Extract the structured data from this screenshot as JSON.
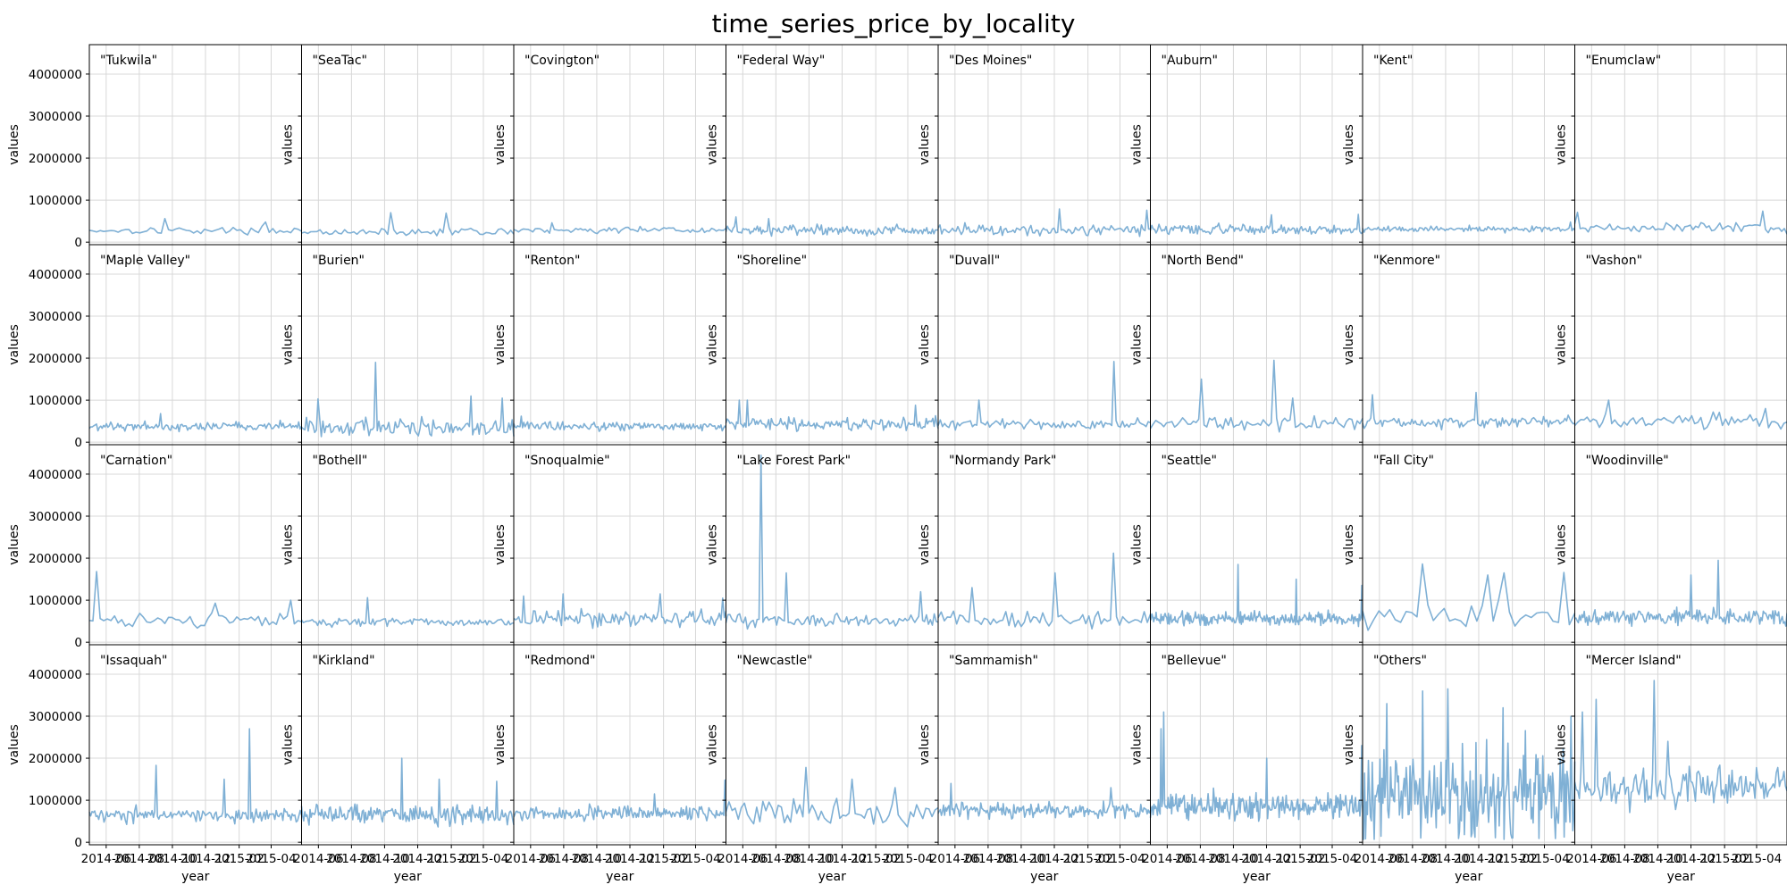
{
  "chart_data": {
    "type": "line",
    "title": "time_series_price_by_locality",
    "xlabel": "year",
    "ylabel": "values",
    "ylim": [
      -60000,
      4700000
    ],
    "yticks": [
      0,
      1000000,
      2000000,
      3000000,
      4000000
    ],
    "ytick_labels": [
      "0",
      "1000000",
      "2000000",
      "3000000",
      "4000000"
    ],
    "xlim": [
      "2014-05-01",
      "2015-05-27"
    ],
    "xticks": [
      "2014-06",
      "2014-08",
      "2014-10",
      "2014-12",
      "2015-02",
      "2015-04"
    ],
    "grid": true,
    "line_color": "#7fb0d5",
    "nrows": 4,
    "ncols": 8,
    "panels": [
      {
        "name": "\"Tukwila\"",
        "base": 280000,
        "noise": 60000,
        "n": 60,
        "spikes": [
          {
            "x": "2014-09-20",
            "y": 560000
          },
          {
            "x": "2015-03-20",
            "y": 480000
          }
        ]
      },
      {
        "name": "\"SeaTac\"",
        "base": 250000,
        "noise": 60000,
        "n": 70,
        "spikes": [
          {
            "x": "2014-10-15",
            "y": 700000
          },
          {
            "x": "2015-01-20",
            "y": 690000
          }
        ]
      },
      {
        "name": "\"Covington\"",
        "base": 290000,
        "noise": 55000,
        "n": 90,
        "spikes": [
          {
            "x": "2014-07-10",
            "y": 460000
          }
        ]
      },
      {
        "name": "\"Federal Way\"",
        "base": 280000,
        "noise": 90000,
        "n": 150,
        "spikes": [
          {
            "x": "2014-05-20",
            "y": 600000
          },
          {
            "x": "2014-07-20",
            "y": 560000
          }
        ]
      },
      {
        "name": "\"Des Moines\"",
        "base": 300000,
        "noise": 100000,
        "n": 120,
        "spikes": [
          {
            "x": "2014-12-10",
            "y": 790000
          },
          {
            "x": "2015-05-20",
            "y": 760000
          }
        ]
      },
      {
        "name": "\"Auburn\"",
        "base": 300000,
        "noise": 90000,
        "n": 150,
        "spikes": [
          {
            "x": "2014-12-10",
            "y": 650000
          },
          {
            "x": "2015-05-20",
            "y": 660000
          }
        ]
      },
      {
        "name": "\"Kent\"",
        "base": 310000,
        "noise": 50000,
        "n": 150,
        "spikes": [
          {
            "x": "2015-05-20",
            "y": 480000
          }
        ]
      },
      {
        "name": "\"Enumclaw\"",
        "base": 330000,
        "noise": 90000,
        "n": 80,
        "spikes": [
          {
            "x": "2014-05-05",
            "y": 710000
          },
          {
            "x": "2015-04-10",
            "y": 740000
          }
        ]
      },
      {
        "name": "\"Maple Valley\"",
        "base": 380000,
        "noise": 80000,
        "n": 150,
        "spikes": [
          {
            "x": "2014-09-10",
            "y": 680000
          }
        ]
      },
      {
        "name": "\"Burien\"",
        "base": 350000,
        "noise": 170000,
        "n": 130,
        "spikes": [
          {
            "x": "2014-09-15",
            "y": 1900000
          },
          {
            "x": "2015-03-10",
            "y": 1100000
          },
          {
            "x": "2015-05-05",
            "y": 1050000
          },
          {
            "x": "2014-06-01",
            "y": 1030000
          }
        ]
      },
      {
        "name": "\"Renton\"",
        "base": 380000,
        "noise": 80000,
        "n": 170,
        "spikes": [
          {
            "x": "2014-05-15",
            "y": 620000
          }
        ]
      },
      {
        "name": "\"Shoreline\"",
        "base": 430000,
        "noise": 110000,
        "n": 160,
        "spikes": [
          {
            "x": "2014-05-25",
            "y": 1000000
          },
          {
            "x": "2014-06-10",
            "y": 1000000
          },
          {
            "x": "2015-04-15",
            "y": 880000
          }
        ]
      },
      {
        "name": "\"Duvall\"",
        "base": 430000,
        "noise": 90000,
        "n": 100,
        "spikes": [
          {
            "x": "2015-03-20",
            "y": 1920000
          },
          {
            "x": "2014-07-15",
            "y": 1000000
          }
        ]
      },
      {
        "name": "\"North Bend\"",
        "base": 450000,
        "noise": 130000,
        "n": 80,
        "spikes": [
          {
            "x": "2014-08-01",
            "y": 1500000
          },
          {
            "x": "2014-12-15",
            "y": 1950000
          },
          {
            "x": "2015-01-20",
            "y": 1050000
          }
        ]
      },
      {
        "name": "\"Kenmore\"",
        "base": 480000,
        "noise": 100000,
        "n": 130,
        "spikes": [
          {
            "x": "2014-05-20",
            "y": 1130000
          },
          {
            "x": "2014-11-25",
            "y": 1180000
          }
        ]
      },
      {
        "name": "\"Vashon\"",
        "base": 500000,
        "noise": 130000,
        "n": 70,
        "spikes": [
          {
            "x": "2014-07-01",
            "y": 1000000
          },
          {
            "x": "2015-04-20",
            "y": 800000
          }
        ]
      },
      {
        "name": "\"Carnation\"",
        "base": 530000,
        "noise": 130000,
        "n": 60,
        "spikes": [
          {
            "x": "2014-05-15",
            "y": 1680000
          },
          {
            "x": "2015-05-10",
            "y": 1000000
          },
          {
            "x": "2014-12-20",
            "y": 930000
          }
        ]
      },
      {
        "name": "\"Bothell\"",
        "base": 480000,
        "noise": 80000,
        "n": 120,
        "spikes": [
          {
            "x": "2014-09-01",
            "y": 1060000
          }
        ]
      },
      {
        "name": "\"Snoqualmie\"",
        "base": 560000,
        "noise": 150000,
        "n": 130,
        "spikes": [
          {
            "x": "2014-05-20",
            "y": 1100000
          },
          {
            "x": "2014-08-01",
            "y": 1150000
          },
          {
            "x": "2015-01-25",
            "y": 1150000
          },
          {
            "x": "2015-05-20",
            "y": 1050000
          }
        ]
      },
      {
        "name": "\"Lake Forest Park\"",
        "base": 520000,
        "noise": 120000,
        "n": 110,
        "spikes": [
          {
            "x": "2014-07-05",
            "y": 4450000
          },
          {
            "x": "2014-08-20",
            "y": 1650000
          },
          {
            "x": "2015-04-25",
            "y": 1200000
          }
        ]
      },
      {
        "name": "\"Normandy Park\"",
        "base": 550000,
        "noise": 150000,
        "n": 70,
        "spikes": [
          {
            "x": "2014-07-05",
            "y": 1300000
          },
          {
            "x": "2014-12-01",
            "y": 1650000
          },
          {
            "x": "2015-03-20",
            "y": 2120000
          }
        ]
      },
      {
        "name": "\"Seattle\"",
        "base": 560000,
        "noise": 120000,
        "n": 260,
        "spikes": [
          {
            "x": "2014-10-10",
            "y": 1850000
          },
          {
            "x": "2015-01-25",
            "y": 1500000
          },
          {
            "x": "2015-05-25",
            "y": 1350000
          }
        ]
      },
      {
        "name": "\"Fall City\"",
        "base": 650000,
        "noise": 250000,
        "n": 40,
        "spikes": [
          {
            "x": "2014-08-20",
            "y": 1860000
          },
          {
            "x": "2014-12-15",
            "y": 1600000
          },
          {
            "x": "2015-01-20",
            "y": 1650000
          },
          {
            "x": "2015-05-05",
            "y": 1660000
          }
        ]
      },
      {
        "name": "\"Woodinville\"",
        "base": 600000,
        "noise": 150000,
        "n": 180,
        "spikes": [
          {
            "x": "2014-12-01",
            "y": 1600000
          },
          {
            "x": "2015-01-20",
            "y": 1950000
          }
        ]
      },
      {
        "name": "\"Issaquah\"",
        "base": 650000,
        "noise": 140000,
        "n": 160,
        "spikes": [
          {
            "x": "2014-09-01",
            "y": 1830000
          },
          {
            "x": "2015-01-05",
            "y": 1500000
          },
          {
            "x": "2015-02-20",
            "y": 2700000
          }
        ]
      },
      {
        "name": "\"Kirkland\"",
        "base": 650000,
        "noise": 170000,
        "n": 200,
        "spikes": [
          {
            "x": "2014-11-01",
            "y": 2000000
          },
          {
            "x": "2015-01-10",
            "y": 1500000
          },
          {
            "x": "2015-04-25",
            "y": 1450000
          }
        ]
      },
      {
        "name": "\"Redmond\"",
        "base": 680000,
        "noise": 130000,
        "n": 200,
        "spikes": [
          {
            "x": "2015-05-25",
            "y": 1480000
          },
          {
            "x": "2015-01-15",
            "y": 1150000
          }
        ]
      },
      {
        "name": "\"Newcastle\"",
        "base": 700000,
        "noise": 230000,
        "n": 70,
        "spikes": [
          {
            "x": "2014-09-25",
            "y": 1780000
          },
          {
            "x": "2014-12-20",
            "y": 1500000
          },
          {
            "x": "2015-03-10",
            "y": 1300000
          }
        ]
      },
      {
        "name": "\"Sammamish\"",
        "base": 760000,
        "noise": 150000,
        "n": 200,
        "spikes": [
          {
            "x": "2014-05-25",
            "y": 1400000
          },
          {
            "x": "2015-03-15",
            "y": 1300000
          }
        ]
      },
      {
        "name": "\"Bellevue\"",
        "base": 850000,
        "noise": 250000,
        "n": 240,
        "spikes": [
          {
            "x": "2014-05-25",
            "y": 3100000
          },
          {
            "x": "2014-05-20",
            "y": 2700000
          },
          {
            "x": "2015-05-25",
            "y": 2300000
          },
          {
            "x": "2014-12-01",
            "y": 2000000
          }
        ]
      },
      {
        "name": "\"Others\"",
        "base": 1200000,
        "noise": 900000,
        "n": 220,
        "spikes": [
          {
            "x": "2014-08-20",
            "y": 3600000
          },
          {
            "x": "2014-10-05",
            "y": 3650000
          },
          {
            "x": "2015-01-15",
            "y": 3200000
          },
          {
            "x": "2015-05-20",
            "y": 3000000
          },
          {
            "x": "2014-06-15",
            "y": 3300000
          }
        ]
      },
      {
        "name": "\"Mercer Island\"",
        "base": 1300000,
        "noise": 350000,
        "n": 140,
        "spikes": [
          {
            "x": "2014-06-10",
            "y": 3400000
          },
          {
            "x": "2014-09-25",
            "y": 3850000
          },
          {
            "x": "2014-05-15",
            "y": 3100000
          },
          {
            "x": "2014-10-20",
            "y": 2400000
          }
        ]
      }
    ]
  }
}
